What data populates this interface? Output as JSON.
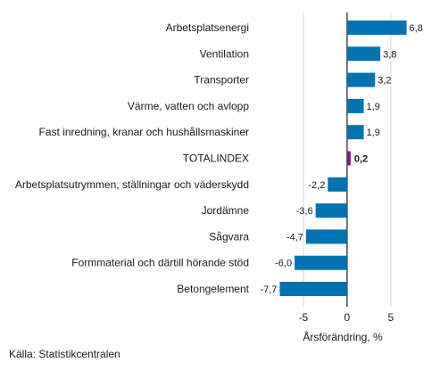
{
  "chart_data": {
    "type": "bar",
    "orientation": "horizontal",
    "categories": [
      "Arbetsplatsenergi",
      "Ventilation",
      "Transporter",
      "Värme, vatten och avlopp",
      "Fast inredning, kranar och hushållsmaskiner",
      "TOTALINDEX",
      "Arbetsplatsutrymmen, ställningar och väderskydd",
      "Jordämne",
      "Sågvara",
      "Formmaterial och därtill hörande stöd",
      "Betongelement"
    ],
    "values": [
      6.8,
      3.8,
      3.2,
      1.9,
      1.9,
      0.2,
      -2.2,
      -3.6,
      -4.7,
      -6.0,
      -7.7
    ],
    "value_labels": [
      "6,8",
      "3,8",
      "3,2",
      "1,9",
      "1,9",
      "0,2",
      "-2,2",
      "-3,6",
      "-4,7",
      "-6,0",
      "-7,7"
    ],
    "highlight_category": "TOTALINDEX",
    "xlabel": "Årsförändring, %",
    "ylabel": "",
    "xlim": [
      -10.5,
      9.5
    ],
    "xticks": [
      -5,
      0,
      5
    ],
    "xtick_labels": [
      "-5",
      "0",
      "5"
    ],
    "grid": "vertical",
    "colors": {
      "bar": "#0073b0",
      "highlight": "#7b1e7a",
      "grid": "#d9d9d9",
      "zero_line": "#1a1a1a"
    }
  },
  "footer": {
    "source": "Källa: Statistikcentralen"
  }
}
